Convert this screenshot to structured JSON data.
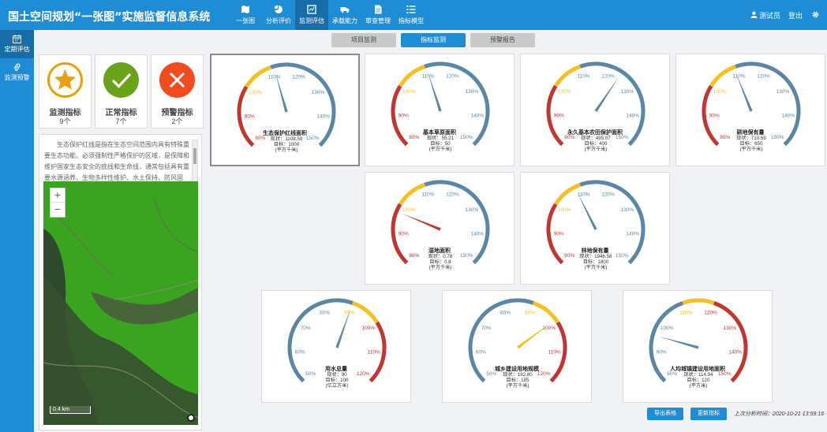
{
  "app": {
    "title": "国土空间规划“一张图”实施监督信息系统"
  },
  "nav": [
    {
      "label": "一张图",
      "icon": "map-icon"
    },
    {
      "label": "分析评价",
      "icon": "pie-chart-icon"
    },
    {
      "label": "监测评估",
      "icon": "monitor-icon"
    },
    {
      "label": "承载能力",
      "icon": "truck-icon"
    },
    {
      "label": "审查管理",
      "icon": "document-icon"
    },
    {
      "label": "指标模型",
      "icon": "list-icon"
    }
  ],
  "user": {
    "name": "测试员",
    "logout": "登出"
  },
  "sidebar": [
    {
      "label": "定期评估",
      "icon": "calendar-icon"
    },
    {
      "label": "监测预警",
      "icon": "paperclip-icon"
    }
  ],
  "subtabs": [
    "项目监测",
    "指标监测",
    "预警报告"
  ],
  "stats": [
    {
      "label": "监测指标",
      "count": "9个",
      "color": "#e8a10e",
      "icon": "star-icon"
    },
    {
      "label": "正常指标",
      "count": "7个",
      "color": "#6aa319",
      "icon": "check-icon"
    },
    {
      "label": "预警指标",
      "count": "2个",
      "color": "#f04c20",
      "icon": "cross-icon"
    }
  ],
  "description": "生态保护红线是指在生态空间范围内具有特殊重要生态功能、必须强制性严格保护的区域，是保障和维护国家生态安全的底线和生命线，通常包括具有重要水源涵养、生物多样性维护、水土保持、防风固沙、海岸生态稳定等功能的生态功能重要区域",
  "map": {
    "scale": "0.4 km",
    "zoom_in": "+",
    "zoom_out": "−"
  },
  "colors": {
    "low": "#c23531",
    "warn": "#f6c022",
    "ok": "#5b87a6"
  },
  "gauges": [
    {
      "name": "生态保护红线面积",
      "current_label": "现状：1108.59",
      "target_label": "目标：1000",
      "unit": "(平方千米)",
      "ticks": [
        "80%",
        "90%",
        "100%",
        "110%",
        "120%",
        "130%",
        "140%",
        "150%"
      ],
      "min": 80,
      "max": 150,
      "warn_from": 100,
      "warn_to": 110,
      "value_pct": 110.9,
      "pointer": "#5b87a6"
    },
    {
      "name": "基本草原面积",
      "current_label": "现状：55.21",
      "target_label": "目标：50",
      "unit": "(平方千米)",
      "ticks": [
        "80%",
        "90%",
        "100%",
        "110%",
        "120%",
        "130%",
        "140%",
        "150%"
      ],
      "min": 80,
      "max": 150,
      "warn_from": 100,
      "warn_to": 110,
      "value_pct": 110.4,
      "pointer": "#5b87a6"
    },
    {
      "name": "永久基本农田保护面积",
      "current_label": "现状：495.07",
      "target_label": "目标：400",
      "unit": "(平方千米)",
      "ticks": [
        "80%",
        "90%",
        "100%",
        "110%",
        "120%",
        "130%",
        "140%",
        "150%"
      ],
      "min": 80,
      "max": 150,
      "warn_from": 100,
      "warn_to": 110,
      "value_pct": 123.8,
      "pointer": "#5b87a6"
    },
    {
      "name": "耕地保有量",
      "current_label": "现状：710.59",
      "target_label": "目标：650",
      "unit": "(平方千米)",
      "ticks": [
        "80%",
        "90%",
        "100%",
        "110%",
        "120%",
        "130%",
        "140%",
        "150%"
      ],
      "min": 80,
      "max": 150,
      "warn_from": 100,
      "warn_to": 110,
      "value_pct": 109.3,
      "pointer": "#5b87a6"
    },
    {
      "name": "湿地面积",
      "current_label": "现状：0.78",
      "target_label": "目标：0.8",
      "unit": "(平方千米)",
      "ticks": [
        "80%",
        "90%",
        "100%",
        "110%",
        "120%",
        "130%",
        "140%",
        "150%"
      ],
      "min": 80,
      "max": 150,
      "warn_from": 100,
      "warn_to": 110,
      "value_pct": 97.5,
      "pointer": "#c23531"
    },
    {
      "name": "林地保有量",
      "current_label": "现状：1946.58",
      "target_label": "目标：1800",
      "unit": "(平方千米)",
      "ticks": [
        "80%",
        "90%",
        "100%",
        "110%",
        "120%",
        "130%",
        "140%",
        "150%"
      ],
      "min": 80,
      "max": 150,
      "warn_from": 100,
      "warn_to": 110,
      "value_pct": 108.1,
      "pointer": "#5b87a6"
    },
    {
      "name": "用水总量",
      "current_label": "现状：90",
      "target_label": "目标：100",
      "unit": "(亿立方米)",
      "ticks": [
        "50%",
        "60%",
        "70%",
        "80%",
        "90%",
        "100%",
        "110%",
        "120%"
      ],
      "min": 50,
      "max": 120,
      "warn_from": 90,
      "warn_to": 100,
      "value_pct": 90,
      "pointer": "#5b87a6",
      "reverse": true
    },
    {
      "name": "城乡建设用地规模",
      "current_label": "现状：182.80",
      "target_label": "目标：185",
      "unit": "(平方千米)",
      "ticks": [
        "50%",
        "60%",
        "70%",
        "80%",
        "90%",
        "100%",
        "110%",
        "120%"
      ],
      "min": 50,
      "max": 120,
      "warn_from": 90,
      "warn_to": 100,
      "value_pct": 98.8,
      "pointer": "#f6c022",
      "reverse": true
    },
    {
      "name": "人均城镇建设用地面积",
      "current_label": "现状：114.94",
      "target_label": "目标：120",
      "unit": "(平方米)",
      "ticks": [
        "80%",
        "90%",
        "100%",
        "110%",
        "120%",
        "130%",
        "140%",
        "150%"
      ],
      "min": 80,
      "max": 150,
      "warn_from": 110,
      "warn_to": 120,
      "value_pct": 95.8,
      "pointer": "#5b87a6",
      "reverse": true,
      "bands": "okwarnlow"
    }
  ],
  "buttons": {
    "export": "导出表格",
    "update": "更新指标"
  },
  "last_analysis": "上次分析时间：2020-10-21 13:59:16"
}
